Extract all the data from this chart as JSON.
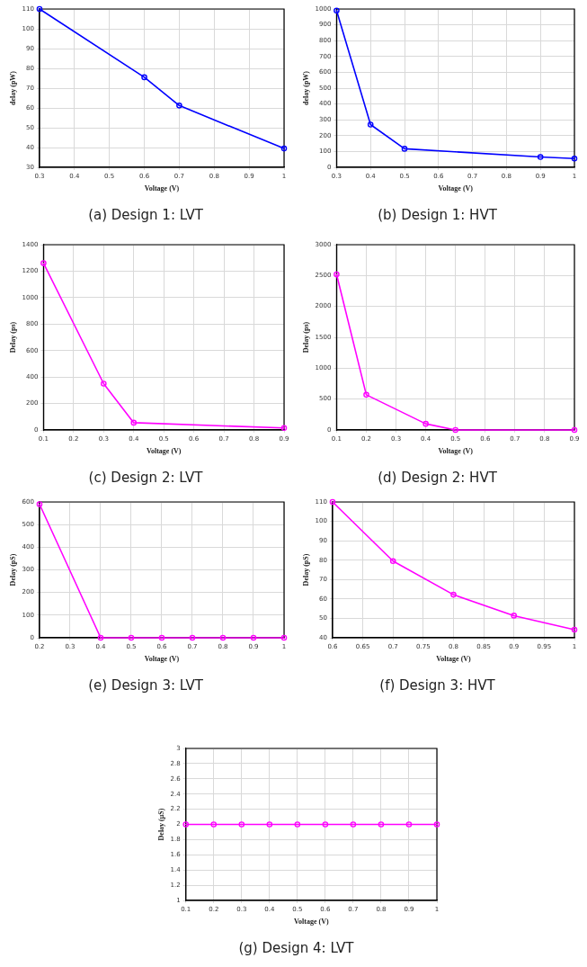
{
  "chart_data": [
    {
      "type": "line",
      "title": "(a) Design 1: LVT",
      "xlabel": "Voltage (V)",
      "ylabel": "delay (pW)",
      "x": [
        0.3,
        0.6,
        0.7,
        1
      ],
      "series": [
        {
          "color": "#0000ff",
          "values": [
            110,
            75.5,
            61.2,
            39.5
          ]
        }
      ],
      "xlim": [
        0.3,
        1
      ],
      "xticks": [
        0.3,
        0.4,
        0.5,
        0.6,
        0.7,
        0.8,
        0.9,
        1
      ],
      "ylim": [
        30,
        110
      ],
      "yticks": [
        30,
        40,
        50,
        60,
        70,
        80,
        90,
        100,
        110
      ],
      "grid": true,
      "legend": false,
      "marker": "circle",
      "line_style": "solid"
    },
    {
      "type": "line",
      "title": "(b) Design 1: HVT",
      "xlabel": "Voltage (V)",
      "ylabel": "delay (pW)",
      "x": [
        0.3,
        0.4,
        0.5,
        0.9,
        1
      ],
      "series": [
        {
          "color": "#0000ff",
          "values": [
            990,
            270,
            117,
            65,
            55
          ]
        }
      ],
      "xlim": [
        0.3,
        1
      ],
      "xticks": [
        0.3,
        0.4,
        0.5,
        0.6,
        0.7,
        0.8,
        0.9,
        1
      ],
      "ylim": [
        0,
        1000
      ],
      "yticks": [
        0,
        100,
        200,
        300,
        400,
        500,
        600,
        700,
        800,
        900,
        1000
      ],
      "grid": true,
      "legend": false,
      "marker": "circle",
      "line_style": "solid"
    },
    {
      "type": "line",
      "title": "(c) Design 2: LVT",
      "xlabel": "Voltage (V)",
      "ylabel": "Delay (ps)",
      "x": [
        0.1,
        0.3,
        0.4,
        0.9
      ],
      "series": [
        {
          "color": "#ff00ff",
          "values": [
            1260,
            350,
            55,
            15
          ]
        }
      ],
      "xlim": [
        0.1,
        0.9
      ],
      "xticks": [
        0.1,
        0.2,
        0.3,
        0.4,
        0.5,
        0.6,
        0.7,
        0.8,
        0.9
      ],
      "ylim": [
        0,
        1400
      ],
      "yticks": [
        0,
        200,
        400,
        600,
        800,
        1000,
        1200,
        1400
      ],
      "grid": true,
      "legend": false,
      "marker": "circle",
      "line_style": "solid"
    },
    {
      "type": "line",
      "title": "(d) Design 2: HVT",
      "xlabel": "Voltage (V)",
      "ylabel": "Delay (ps)",
      "x": [
        0.1,
        0.2,
        0.4,
        0.5,
        0.9
      ],
      "series": [
        {
          "color": "#ff00ff",
          "values": [
            2520,
            570,
            100,
            0,
            0
          ]
        }
      ],
      "xlim": [
        0.1,
        0.9
      ],
      "xticks": [
        0.1,
        0.2,
        0.3,
        0.4,
        0.5,
        0.6,
        0.7,
        0.8,
        0.9
      ],
      "ylim": [
        0,
        3000
      ],
      "yticks": [
        0,
        500,
        1000,
        1500,
        2000,
        2500,
        3000
      ],
      "grid": true,
      "legend": false,
      "marker": "circle",
      "line_style": "solid"
    },
    {
      "type": "line",
      "title": "(e) Design 3: LVT",
      "xlabel": "Voltage (V)",
      "ylabel": "Delay (pS)",
      "x": [
        0.2,
        0.4,
        0.5,
        0.6,
        0.7,
        0.8,
        0.9,
        1
      ],
      "series": [
        {
          "color": "#ff00ff",
          "values": [
            590,
            0,
            0,
            0,
            0,
            0,
            0,
            0
          ]
        }
      ],
      "xlim": [
        0.2,
        1
      ],
      "xticks": [
        0.2,
        0.3,
        0.4,
        0.5,
        0.6,
        0.7,
        0.8,
        0.9,
        1
      ],
      "ylim": [
        0,
        600
      ],
      "yticks": [
        0,
        100,
        200,
        300,
        400,
        500,
        600
      ],
      "grid": true,
      "legend": false,
      "marker": "circle",
      "line_style": "solid"
    },
    {
      "type": "line",
      "title": "(f) Design 3: HVT",
      "xlabel": "Voltage (V)",
      "ylabel": "Delay (pS)",
      "x": [
        0.6,
        0.7,
        0.8,
        0.9,
        1
      ],
      "series": [
        {
          "color": "#ff00ff",
          "values": [
            110,
            79.5,
            62.2,
            51.4,
            44.2
          ]
        }
      ],
      "xlim": [
        0.6,
        1
      ],
      "xticks": [
        0.6,
        0.65,
        0.7,
        0.75,
        0.8,
        0.85,
        0.9,
        0.95,
        1
      ],
      "ylim": [
        40,
        110
      ],
      "yticks": [
        40,
        50,
        60,
        70,
        80,
        90,
        100,
        110
      ],
      "grid": true,
      "legend": false,
      "marker": "circle",
      "line_style": "solid"
    },
    {
      "type": "line",
      "title": "(g) Design 4: LVT",
      "xlabel": "Voltage (V)",
      "ylabel": "Delay (μS)",
      "x": [
        0.1,
        0.2,
        0.3,
        0.4,
        0.5,
        0.6,
        0.7,
        0.8,
        0.9,
        1
      ],
      "series": [
        {
          "color": "#ff00ff",
          "values": [
            2,
            2,
            2,
            2,
            2,
            2,
            2,
            2,
            2,
            2
          ]
        }
      ],
      "xlim": [
        0.1,
        1
      ],
      "xticks": [
        0.1,
        0.2,
        0.3,
        0.4,
        0.5,
        0.6,
        0.7,
        0.8,
        0.9,
        1
      ],
      "ylim": [
        1,
        3
      ],
      "yticks": [
        1,
        1.2,
        1.4,
        1.6,
        1.8,
        2,
        2.2,
        2.4,
        2.6,
        2.8,
        3
      ],
      "grid": true,
      "legend": false,
      "marker": "circle",
      "line_style": "solid"
    }
  ]
}
